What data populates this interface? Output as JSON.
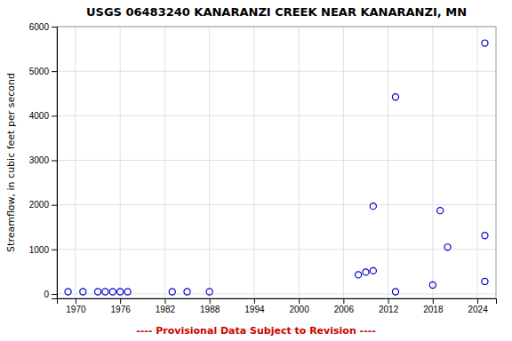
{
  "chart_data": {
    "type": "scatter",
    "title": "USGS 06483240 KANARANZI CREEK NEAR KANARANZI, MN",
    "y_label": "Streamflow, in cubic feet per second",
    "annotations": [
      "---- Provisional Data Subject to Revision ----"
    ],
    "x": [
      1969,
      1971,
      1973,
      1974,
      1975,
      1976,
      1977,
      1983,
      1985,
      1988,
      2008,
      2009,
      2010,
      2010,
      2013,
      2013,
      2018,
      2019,
      2020,
      2025,
      2025,
      2025
    ],
    "values": [
      50,
      50,
      50,
      50,
      50,
      50,
      50,
      50,
      50,
      50,
      430,
      490,
      520,
      1970,
      4420,
      50,
      200,
      1870,
      1050,
      5630,
      1310,
      280
    ],
    "xlim": [
      1967.5,
      2026.5
    ],
    "ylim": [
      -100,
      6000
    ],
    "xticks": [
      1970,
      1976,
      1982,
      1988,
      1994,
      2000,
      2006,
      2012,
      2018,
      2024
    ],
    "yticks": [
      0,
      1000,
      2000,
      3000,
      4000,
      5000,
      6000
    ],
    "color": "#0000cc",
    "marker": "circle",
    "grid": true
  }
}
